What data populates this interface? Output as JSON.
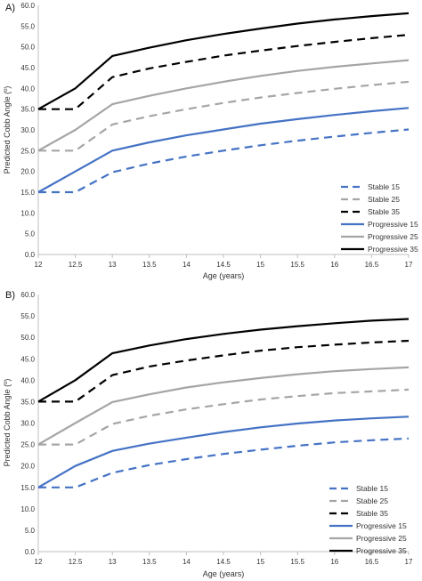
{
  "chart_data": [
    {
      "type": "line",
      "panel_label": "A)",
      "xlabel": "Age (years)",
      "ylabel": "Predicted Cobb Angle (º)",
      "x": [
        12,
        12.5,
        13,
        13.5,
        14,
        14.5,
        15,
        15.5,
        16,
        16.5,
        17
      ],
      "x_tick_labels": [
        "12",
        "12.5",
        "13",
        "13.5",
        "14",
        "14.5",
        "15",
        "15.5",
        "16",
        "16.5",
        "17"
      ],
      "ylim": [
        0,
        60
      ],
      "y_tick_labels": [
        "0.0",
        "5.0",
        "10.0",
        "15.0",
        "20.0",
        "25.0",
        "30.0",
        "35.0",
        "40.0",
        "45.0",
        "50.0",
        "55.0",
        "60.0"
      ],
      "grid": false,
      "legend_position": "bottom-right",
      "series": [
        {
          "name": "Stable 15",
          "color": "#4472c4",
          "dash": "dashed",
          "values": [
            15.0,
            15.0,
            19.8,
            21.9,
            23.6,
            25.0,
            26.3,
            27.4,
            28.4,
            29.3,
            30.1
          ]
        },
        {
          "name": "Stable 25",
          "color": "#a5a5a5",
          "dash": "dashed",
          "values": [
            25.0,
            25.0,
            31.3,
            33.3,
            35.0,
            36.5,
            37.8,
            38.9,
            39.9,
            40.8,
            41.6
          ]
        },
        {
          "name": "Stable 35",
          "color": "#000000",
          "dash": "dashed",
          "values": [
            35.0,
            35.0,
            42.7,
            44.8,
            46.4,
            47.9,
            49.1,
            50.2,
            51.2,
            52.1,
            52.9
          ]
        },
        {
          "name": "Progressive 15",
          "color": "#4472c4",
          "dash": "solid",
          "values": [
            15.0,
            20.0,
            25.0,
            27.0,
            28.7,
            30.1,
            31.5,
            32.6,
            33.6,
            34.5,
            35.3
          ]
        },
        {
          "name": "Progressive 25",
          "color": "#a5a5a5",
          "dash": "solid",
          "values": [
            25.0,
            30.0,
            36.2,
            38.2,
            40.0,
            41.6,
            43.0,
            44.2,
            45.2,
            46.0,
            46.8
          ]
        },
        {
          "name": "Progressive 35",
          "color": "#000000",
          "dash": "solid",
          "values": [
            35.0,
            40.0,
            47.8,
            49.8,
            51.6,
            53.1,
            54.4,
            55.6,
            56.6,
            57.4,
            58.1
          ]
        }
      ]
    },
    {
      "type": "line",
      "panel_label": "B)",
      "xlabel": "Age (years)",
      "ylabel": "Predicted Cobb Angle (º)",
      "x": [
        12,
        12.5,
        13,
        13.5,
        14,
        14.5,
        15,
        15.5,
        16,
        16.5,
        17
      ],
      "x_tick_labels": [
        "12",
        "12.5",
        "13",
        "13.5",
        "14",
        "14.5",
        "15",
        "15.5",
        "16",
        "16.5",
        "17"
      ],
      "ylim": [
        0,
        60
      ],
      "y_tick_labels": [
        "0.0",
        "5.0",
        "10.0",
        "15.0",
        "20.0",
        "25.0",
        "30.0",
        "35.0",
        "40.0",
        "45.0",
        "50.0",
        "55.0",
        "60.0"
      ],
      "grid": false,
      "legend_position": "bottom-right",
      "series": [
        {
          "name": "Stable 15",
          "color": "#4472c4",
          "dash": "dashed",
          "values": [
            15.0,
            15.0,
            18.4,
            20.2,
            21.6,
            22.8,
            23.8,
            24.7,
            25.5,
            26.0,
            26.4
          ]
        },
        {
          "name": "Stable 25",
          "color": "#a5a5a5",
          "dash": "dashed",
          "values": [
            25.0,
            25.0,
            29.8,
            31.7,
            33.2,
            34.4,
            35.5,
            36.3,
            37.0,
            37.4,
            37.8
          ]
        },
        {
          "name": "Stable 35",
          "color": "#000000",
          "dash": "dashed",
          "values": [
            35.0,
            35.0,
            41.2,
            43.2,
            44.6,
            45.8,
            46.9,
            47.7,
            48.3,
            48.8,
            49.2
          ]
        },
        {
          "name": "Progressive 15",
          "color": "#4472c4",
          "dash": "solid",
          "values": [
            15.0,
            20.0,
            23.5,
            25.2,
            26.6,
            27.9,
            29.0,
            29.9,
            30.6,
            31.1,
            31.5
          ]
        },
        {
          "name": "Progressive 25",
          "color": "#a5a5a5",
          "dash": "solid",
          "values": [
            25.0,
            30.0,
            34.9,
            36.7,
            38.3,
            39.5,
            40.5,
            41.4,
            42.1,
            42.6,
            43.0
          ]
        },
        {
          "name": "Progressive 35",
          "color": "#000000",
          "dash": "solid",
          "values": [
            35.0,
            40.0,
            46.3,
            48.1,
            49.6,
            50.8,
            51.8,
            52.6,
            53.3,
            53.9,
            54.3
          ]
        }
      ]
    }
  ]
}
